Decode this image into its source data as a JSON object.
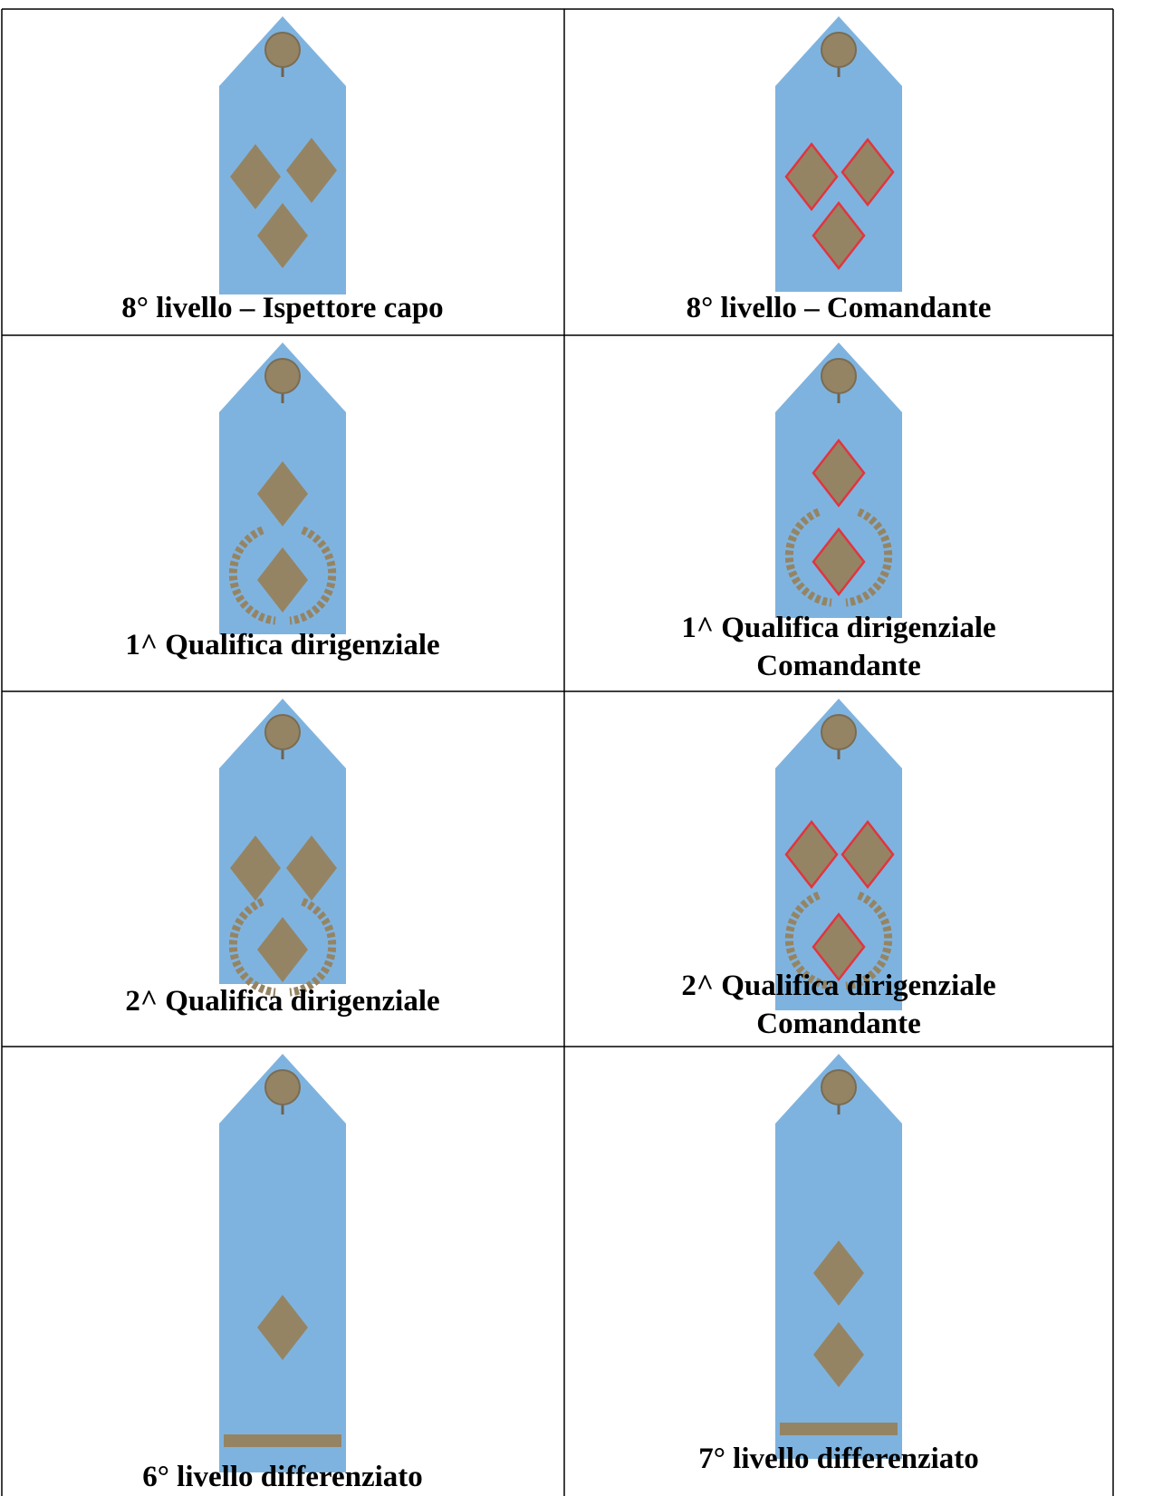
{
  "table": {
    "rows": [
      [
        [
          "8° livello – Ispettore capo"
        ],
        [
          "8° livello – Comandante"
        ]
      ],
      [
        [
          "1^ Qualifica dirigenziale"
        ],
        [
          "1^ Qualifica dirigenziale",
          "Comandante"
        ]
      ],
      [
        [
          "2^ Qualifica dirigenziale"
        ],
        [
          "2^ Qualifica dirigenziale",
          "Comandante"
        ]
      ],
      [
        [
          "6° livello differenziato"
        ],
        [
          "7° livello differenziato"
        ]
      ]
    ]
  }
}
